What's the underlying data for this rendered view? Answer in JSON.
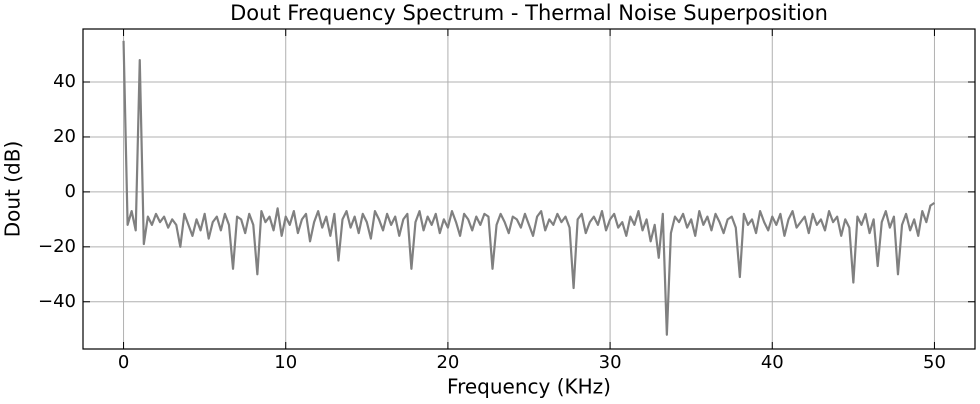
{
  "chart_data": {
    "type": "line",
    "title": "Dout Frequency Spectrum - Thermal Noise Superposition",
    "xlabel": "Frequency (KHz)",
    "ylabel": "Dout (dB)",
    "xlim": [
      -2.5,
      52.5
    ],
    "ylim": [
      -57.2,
      59.3
    ],
    "xticks": [
      0,
      10,
      20,
      30,
      40,
      50
    ],
    "yticks": [
      {
        "value": -40,
        "label": "−40"
      },
      {
        "value": -20,
        "label": "−20"
      },
      0,
      20,
      40
    ],
    "grid": true,
    "series": [
      {
        "color": "#808080",
        "x": [
          0,
          0.25,
          0.5,
          0.75,
          1,
          1.25,
          1.5,
          1.75,
          2,
          2.25,
          2.5,
          2.75,
          3,
          3.25,
          3.5,
          3.75,
          4,
          4.25,
          4.5,
          4.75,
          5,
          5.25,
          5.5,
          5.75,
          6,
          6.25,
          6.5,
          6.75,
          7,
          7.25,
          7.5,
          7.75,
          8,
          8.25,
          8.5,
          8.75,
          9,
          9.25,
          9.5,
          9.75,
          10,
          10.25,
          10.5,
          10.75,
          11,
          11.25,
          11.5,
          11.75,
          12,
          12.25,
          12.5,
          12.75,
          13,
          13.25,
          13.5,
          13.75,
          14,
          14.25,
          14.5,
          14.75,
          15,
          15.25,
          15.5,
          15.75,
          16,
          16.25,
          16.5,
          16.75,
          17,
          17.25,
          17.5,
          17.75,
          18,
          18.25,
          18.5,
          18.75,
          19,
          19.25,
          19.5,
          19.75,
          20,
          20.25,
          20.5,
          20.75,
          21,
          21.25,
          21.5,
          21.75,
          22,
          22.25,
          22.5,
          22.75,
          23,
          23.25,
          23.5,
          23.75,
          24,
          24.25,
          24.5,
          24.75,
          25,
          25.25,
          25.5,
          25.75,
          26,
          26.25,
          26.5,
          26.75,
          27,
          27.25,
          27.5,
          27.75,
          28,
          28.25,
          28.5,
          28.75,
          29,
          29.25,
          29.5,
          29.75,
          30,
          30.25,
          30.5,
          30.75,
          31,
          31.25,
          31.5,
          31.75,
          32,
          32.25,
          32.5,
          32.75,
          33,
          33.25,
          33.5,
          33.75,
          34,
          34.25,
          34.5,
          34.75,
          35,
          35.25,
          35.5,
          35.75,
          36,
          36.25,
          36.5,
          36.75,
          37,
          37.25,
          37.5,
          37.75,
          38,
          38.25,
          38.5,
          38.75,
          39,
          39.25,
          39.5,
          39.75,
          40,
          40.25,
          40.5,
          40.75,
          41,
          41.25,
          41.5,
          41.75,
          42,
          42.25,
          42.5,
          42.75,
          43,
          43.25,
          43.5,
          43.75,
          44,
          44.25,
          44.5,
          44.75,
          45,
          45.25,
          45.5,
          45.75,
          46,
          46.25,
          46.5,
          46.75,
          47,
          47.25,
          47.5,
          47.75,
          48,
          48.25,
          48.5,
          48.75,
          49,
          49.25,
          49.5,
          49.75,
          50
        ],
        "values": [
          55,
          -12,
          -7,
          -14,
          48,
          -19,
          -9,
          -12,
          -8,
          -11,
          -9,
          -13,
          -10,
          -12,
          -20,
          -8,
          -12,
          -16,
          -10,
          -14,
          -8,
          -17,
          -11,
          -9,
          -14,
          -8,
          -12,
          -28,
          -9,
          -10,
          -15,
          -8,
          -12,
          -30,
          -7,
          -11,
          -9,
          -14,
          -6,
          -16,
          -9,
          -12,
          -7,
          -15,
          -10,
          -8,
          -18,
          -11,
          -7,
          -13,
          -9,
          -16,
          -8,
          -25,
          -10,
          -7,
          -13,
          -9,
          -15,
          -8,
          -11,
          -17,
          -7,
          -10,
          -14,
          -8,
          -12,
          -9,
          -16,
          -10,
          -8,
          -28,
          -11,
          -7,
          -14,
          -9,
          -12,
          -8,
          -15,
          -10,
          -13,
          -7,
          -11,
          -16,
          -8,
          -10,
          -14,
          -9,
          -12,
          -8,
          -9,
          -28,
          -12,
          -8,
          -11,
          -15,
          -9,
          -10,
          -13,
          -8,
          -12,
          -16,
          -9,
          -7,
          -14,
          -10,
          -12,
          -8,
          -11,
          -9,
          -13,
          -35,
          -10,
          -8,
          -15,
          -11,
          -9,
          -12,
          -7,
          -14,
          -10,
          -8,
          -13,
          -11,
          -16,
          -9,
          -12,
          -7,
          -14,
          -10,
          -18,
          -12,
          -24,
          -8,
          -52,
          -15,
          -9,
          -11,
          -8,
          -13,
          -10,
          -16,
          -7,
          -12,
          -9,
          -14,
          -8,
          -11,
          -15,
          -10,
          -9,
          -13,
          -31,
          -8,
          -12,
          -10,
          -15,
          -7,
          -11,
          -14,
          -9,
          -12,
          -8,
          -16,
          -10,
          -7,
          -13,
          -11,
          -9,
          -15,
          -8,
          -12,
          -10,
          -14,
          -7,
          -11,
          -9,
          -16,
          -10,
          -13,
          -33,
          -9,
          -12,
          -8,
          -15,
          -10,
          -27,
          -11,
          -7,
          -13,
          -9,
          -30,
          -12,
          -8,
          -14,
          -10,
          -16,
          -7,
          -11,
          -5,
          -4
        ]
      }
    ]
  }
}
